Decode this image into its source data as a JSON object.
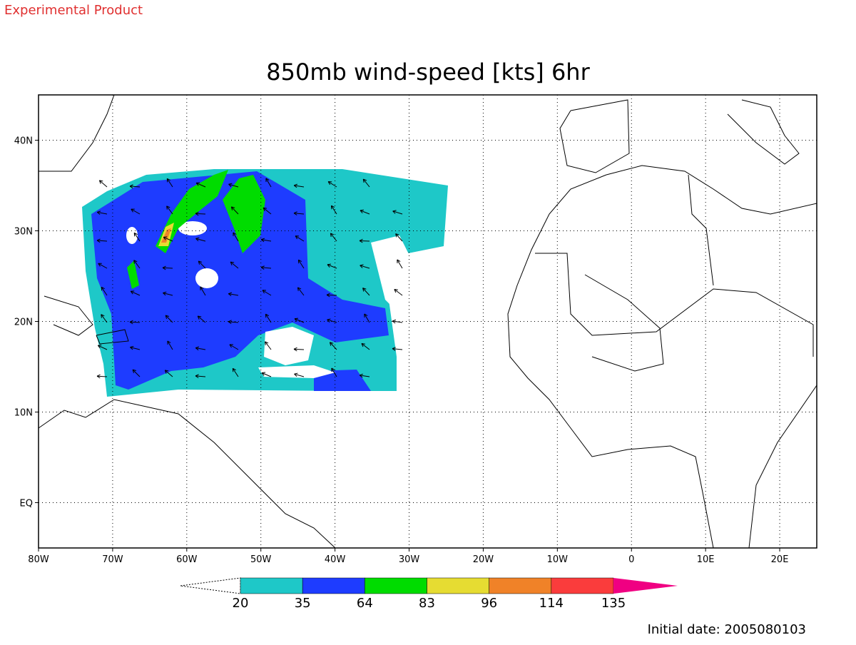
{
  "header": {
    "product": "Experimental Product"
  },
  "map": {
    "title": "850mb wind-speed [kts] 6hr",
    "lon_ticks": [
      "80W",
      "70W",
      "60W",
      "50W",
      "40W",
      "30W",
      "20W",
      "10W",
      "0",
      "10E",
      "20E"
    ],
    "lat_ticks": [
      "40N",
      "30N",
      "20N",
      "10N",
      "EQ"
    ]
  },
  "colorbar": {
    "levels": [
      20,
      35,
      64,
      83,
      96,
      114,
      135
    ],
    "colors": [
      "#1ec8c8",
      "#1e3cff",
      "#00dc00",
      "#e6dc32",
      "#f08228",
      "#fa3c3c",
      "#f00082"
    ]
  },
  "footer": {
    "initial_date": "Initial date: 2005080103"
  }
}
